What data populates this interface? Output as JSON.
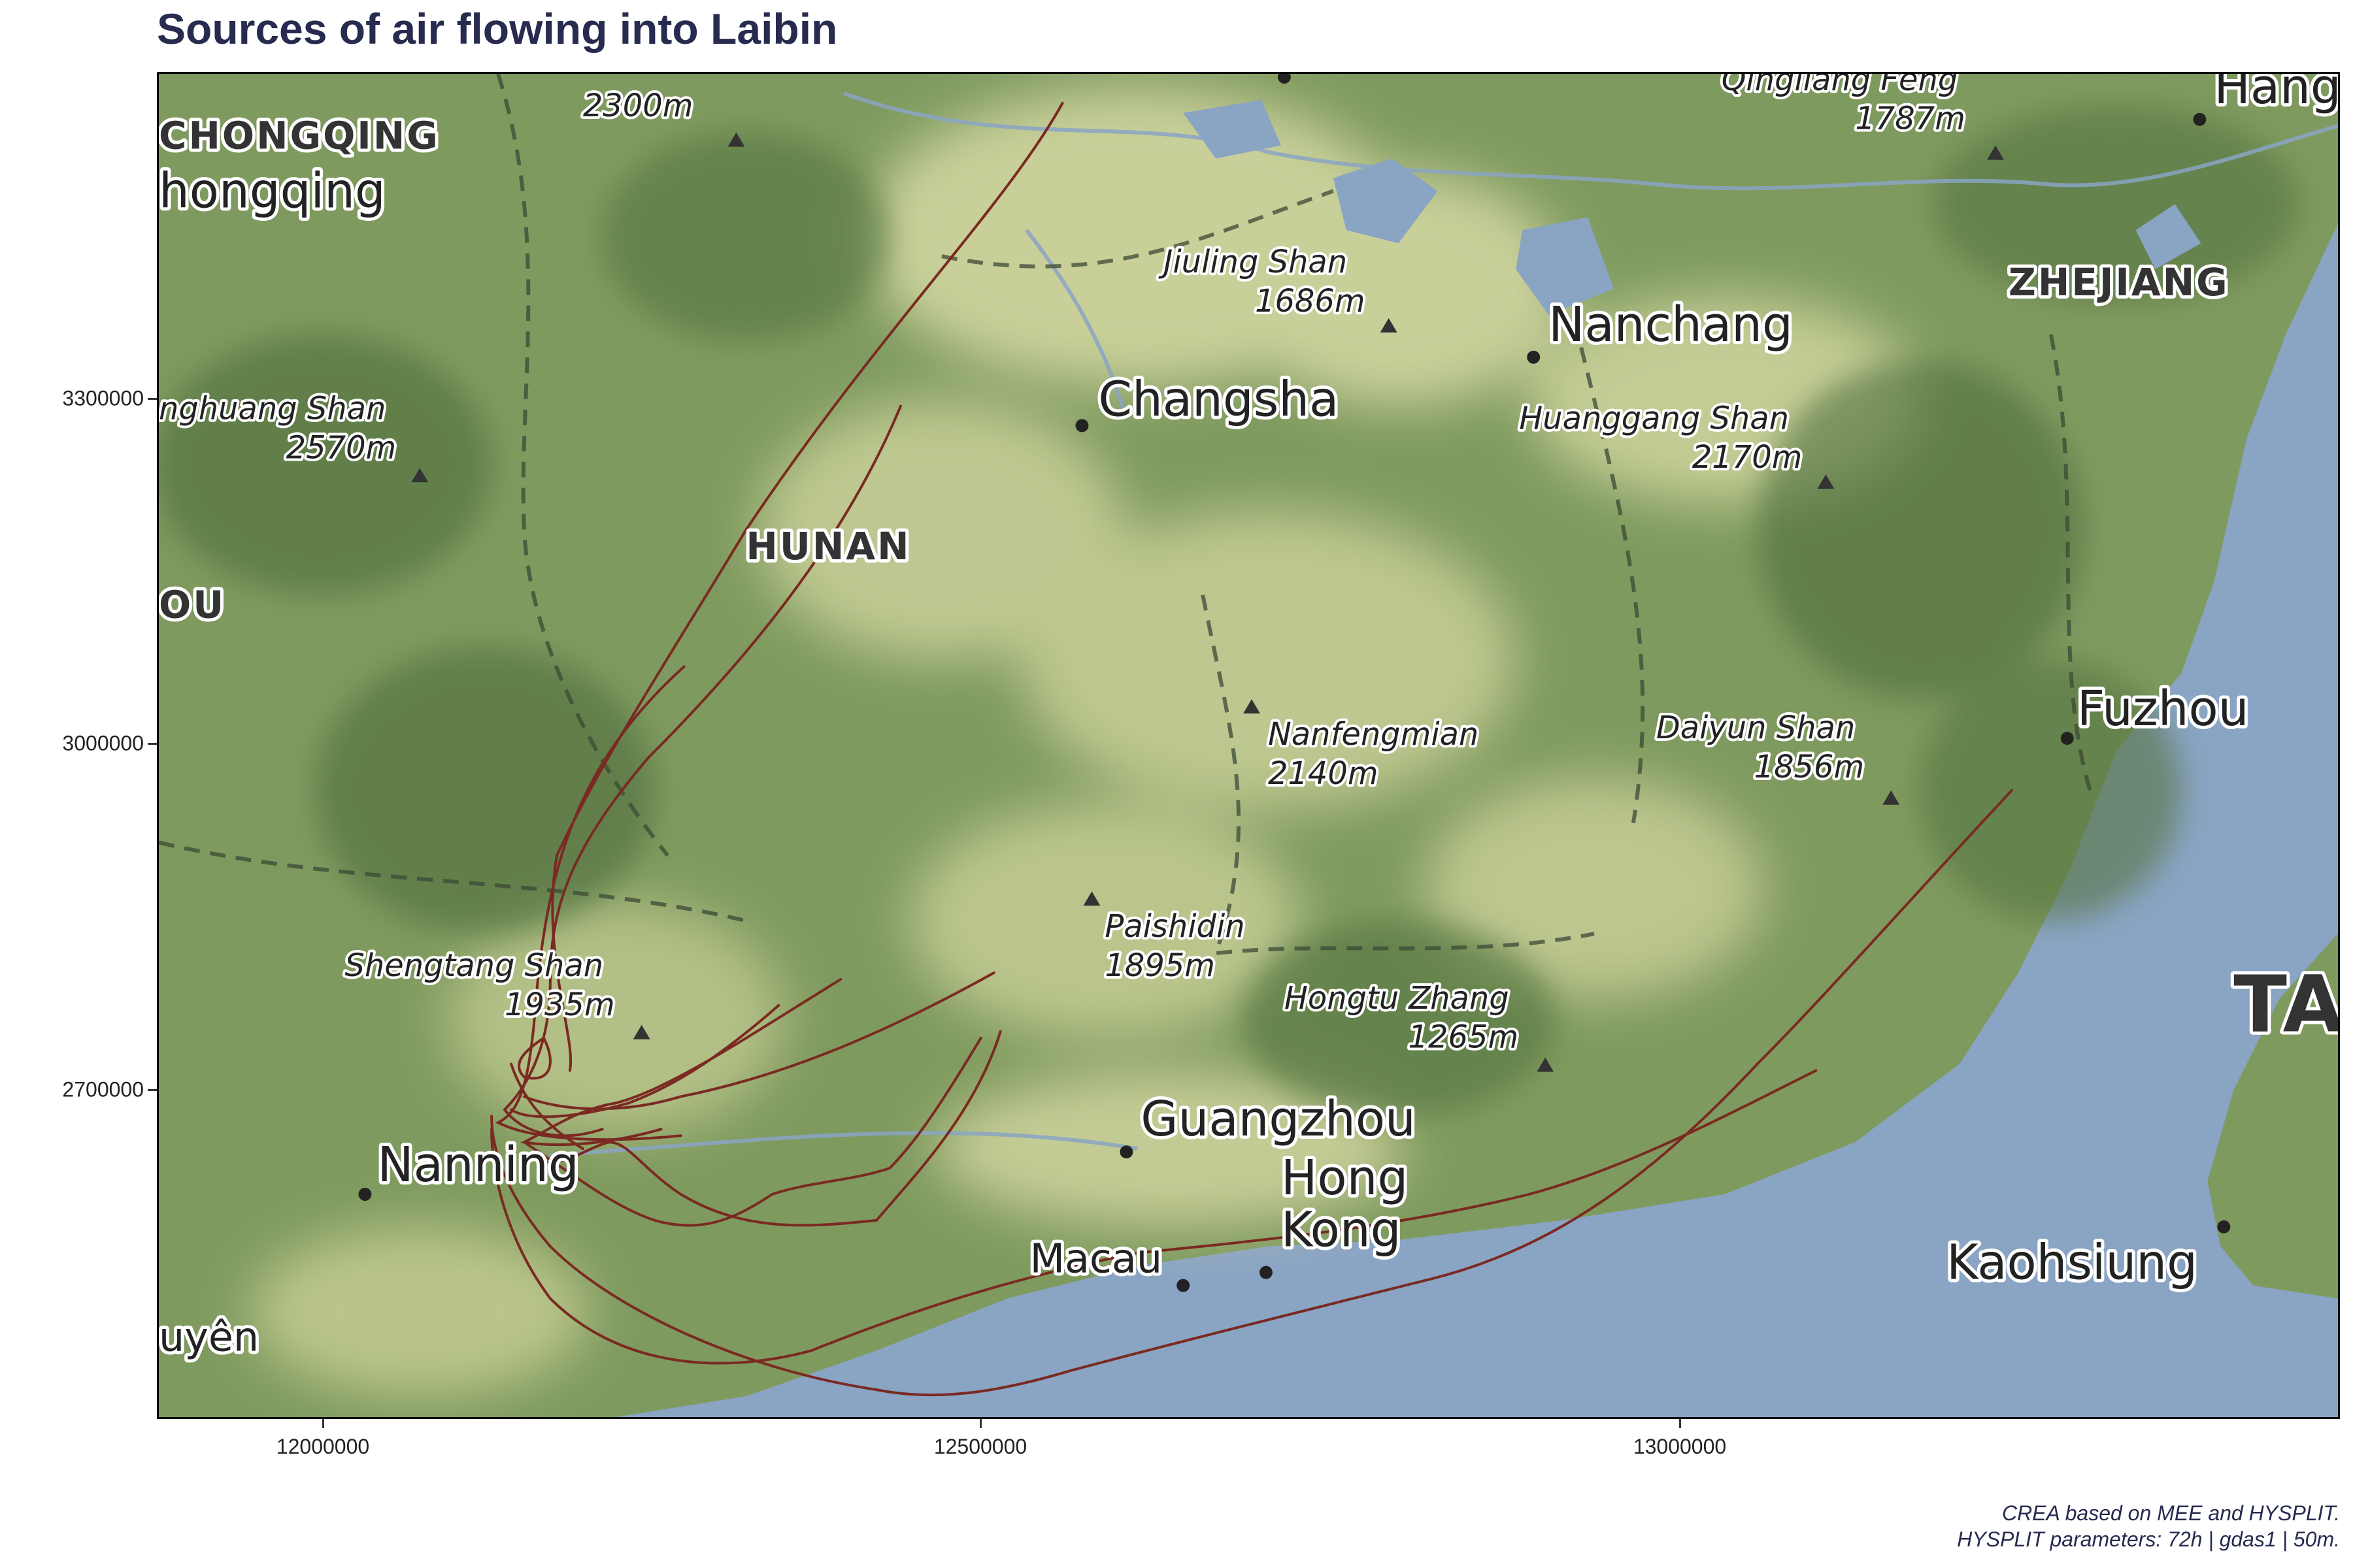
{
  "title": "Sources of air flowing into Laibin",
  "caption": {
    "line1": "CREA based on MEE and HYSPLIT.",
    "line2": "HYSPLIT parameters: 72h | gdas1 | 50m."
  },
  "axes": {
    "y_ticks": [
      "3300000",
      "3000000",
      "2700000"
    ],
    "x_ticks": [
      "12000000",
      "12500000",
      "13000000"
    ]
  },
  "map_labels": {
    "cities": [
      "Changsha",
      "Nanchang",
      "Fuzhou",
      "Guangzhou",
      "Hong",
      "Kong",
      "Macau",
      "Nanning",
      "Kaohsiung",
      "Hang",
      "hongqing",
      "uyên"
    ],
    "provinces": [
      "HUNAN",
      "ZHEJIANG",
      "CHONGQING",
      "OU",
      "TA"
    ],
    "peaks": [
      {
        "name": "Jiuling Shan",
        "elev": "1686m"
      },
      {
        "name": "Huanggang Shan",
        "elev": "2170m"
      },
      {
        "name": "Nanfengmian",
        "elev": "2140m"
      },
      {
        "name": "Daiyun Shan",
        "elev": "1856m"
      },
      {
        "name": "Paishidin",
        "elev": "1895m"
      },
      {
        "name": "Hongtu Zhang",
        "elev": "1265m"
      },
      {
        "name": "Shengtang Shan",
        "elev": "1935m"
      },
      {
        "name": "nghuang Shan",
        "elev": "2570m"
      },
      {
        "name": "Qingliang Feng",
        "elev": "1787m"
      },
      {
        "name": "",
        "elev": "2300m"
      }
    ]
  },
  "colors": {
    "land": "#7f9a5f",
    "land_light": "#cfd59e",
    "sea": "#8aa4c4",
    "trajectory": "#7a2a22",
    "title": "#262b4f"
  },
  "trajectories_count": 12
}
